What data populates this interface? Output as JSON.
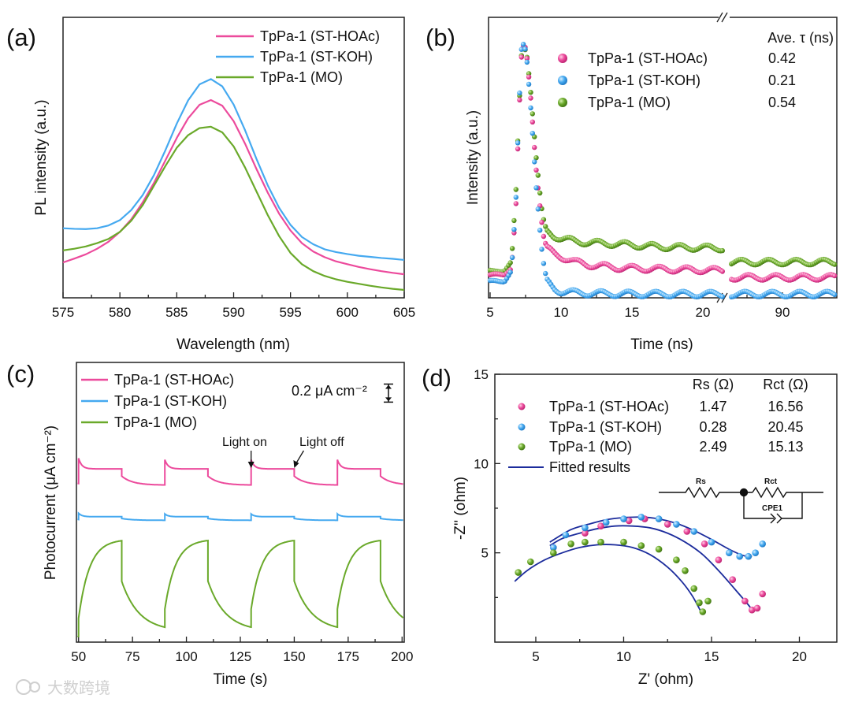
{
  "figure_labels": [
    "(a)",
    "(b)",
    "(c)",
    "(d)"
  ],
  "watermark": "大数跨境",
  "colors": {
    "hoac": "#ec4a9c",
    "koh": "#45a9f0",
    "mo": "#6aa92a",
    "fit": "#1c2c9c"
  },
  "chart_data": [
    {
      "panel": "a",
      "type": "line",
      "xlabel": "Wavelength (nm)",
      "ylabel": "PL intensity (a.u.)",
      "xlim": [
        575,
        605
      ],
      "ylim": [
        0,
        100
      ],
      "x_ticks": [
        575,
        580,
        585,
        590,
        595,
        600,
        605
      ],
      "legend": "top-right",
      "x": [
        575,
        576,
        577,
        578,
        579,
        580,
        581,
        582,
        583,
        584,
        585,
        586,
        587,
        588,
        589,
        590,
        591,
        592,
        593,
        594,
        595,
        596,
        597,
        598,
        599,
        600,
        601,
        602,
        603,
        604,
        605
      ],
      "series": [
        {
          "key": "hoac",
          "name": "TpPa-1 (ST-HOAc)",
          "values": [
            12.6,
            14,
            15.5,
            17.5,
            20,
            23.5,
            28,
            34,
            41,
            49,
            57,
            64,
            68.8,
            70.5,
            68.5,
            63,
            55,
            46,
            37.5,
            30,
            24,
            19.5,
            16.5,
            14.5,
            13,
            12,
            11,
            10.2,
            9.5,
            8.9,
            8.4
          ]
        },
        {
          "key": "koh",
          "name": "TpPa-1 (ST-KOH)",
          "values": [
            24.8,
            24.6,
            24.5,
            24.8,
            25.8,
            27.7,
            31.3,
            36.6,
            43.8,
            52.6,
            62.1,
            70.4,
            76.1,
            78,
            75.4,
            68.9,
            59.8,
            49.6,
            40.1,
            32.1,
            26,
            21.7,
            19.1,
            17.3,
            16.3,
            15.6,
            15,
            14.6,
            14.2,
            13.9,
            13.5
          ]
        },
        {
          "key": "mo",
          "name": "TpPa-1 (MO)",
          "values": [
            16.9,
            17.5,
            18.3,
            19.5,
            21,
            23.5,
            27.5,
            33,
            40,
            47,
            53.5,
            58,
            60.5,
            61,
            59,
            54,
            46.5,
            38,
            29.5,
            22,
            16,
            12,
            9.5,
            7.8,
            6.6,
            5.7,
            5,
            4.3,
            3.7,
            3.2,
            2.8
          ]
        }
      ]
    },
    {
      "panel": "b",
      "type": "scatter",
      "xlabel": "Time (ns)",
      "ylabel": "Intensity (a.u.)",
      "x_ticks": [
        5,
        10,
        15,
        20,
        90
      ],
      "axis_break": "between 21.5 and 86.4 ns",
      "ylim": [
        0,
        100
      ],
      "legend_header": "Ave. τ (ns)",
      "legend": "top-right",
      "t_left": [
        5,
        6,
        6.5,
        6.8,
        7.0,
        7.2,
        7.4,
        7.6,
        7.8,
        8.0,
        8.2,
        8.4,
        8.6,
        8.8,
        9,
        9.5,
        10,
        11,
        12,
        14,
        17,
        21.5
      ],
      "t_right": [
        86.4,
        93.8
      ],
      "series": [
        {
          "key": "hoac",
          "name": "TpPa-1 (ST-HOAc)",
          "tau": "0.42",
          "left": [
            7.3,
            7.5,
            10,
            30,
            60,
            85,
            91,
            85,
            75,
            62,
            48,
            38,
            28,
            20,
            17,
            15,
            14,
            12,
            11,
            10,
            9.5,
            9
          ],
          "right": [
            6.5,
            6.5
          ]
        },
        {
          "key": "koh",
          "name": "TpPa-1 (ST-KOH)",
          "tau": "0.21",
          "left": [
            5,
            5.2,
            9,
            32,
            62,
            88,
            91,
            84,
            72,
            58,
            42,
            30,
            18,
            10,
            5,
            2.5,
            1.5,
            1,
            0.8,
            0.6,
            0.5,
            0.5
          ],
          "right": [
            0.5,
            0.5
          ]
        },
        {
          "key": "mo",
          "name": "TpPa-1 (MO)",
          "tau": "0.54",
          "left": [
            8.7,
            9,
            12,
            35,
            62,
            86,
            90,
            86,
            77,
            65,
            52,
            42,
            32,
            26,
            23,
            21.5,
            20.5,
            19.5,
            19,
            18.5,
            17.5,
            17
          ],
          "right": [
            12,
            12
          ]
        }
      ]
    },
    {
      "panel": "c",
      "type": "line",
      "xlabel": "Time (s)",
      "ylabel": "Photocurrent (μA cm⁻²)",
      "xlim": [
        49,
        201
      ],
      "ylim": [
        0,
        3.1
      ],
      "x_ticks": [
        50,
        75,
        100,
        125,
        150,
        175,
        200
      ],
      "light_on": [
        50,
        90,
        130,
        170
      ],
      "light_off": [
        70,
        110,
        150,
        190
      ],
      "annotations": {
        "light_on": "Light on",
        "light_off": "Light off",
        "scale_bar": "0.2 μA cm⁻²",
        "scale_bar_value": 0.2
      },
      "legend": "top-left",
      "series": [
        {
          "key": "hoac",
          "name": "TpPa-1 (ST-HOAc)",
          "start": 1.76,
          "dark": 1.74,
          "light": 1.92,
          "jump_on": 0.28,
          "tau_on": 1.5,
          "jump_off": 0.08,
          "tau_off": 5
        },
        {
          "key": "koh",
          "name": "TpPa-1 (ST-KOH)",
          "start": 1.36,
          "dark": 1.35,
          "light": 1.39,
          "jump_on": 0.07,
          "tau_on": 1.5,
          "jump_off": 0.02,
          "tau_off": 5
        },
        {
          "key": "mo",
          "name": "TpPa-1 (MO)",
          "start": 0.06,
          "dark": 0.12,
          "light": 1.14,
          "jump_on": 0.2,
          "tau_on": 5,
          "jump_off": 0.45,
          "tau_off": 8
        }
      ]
    },
    {
      "panel": "d",
      "type": "scatter",
      "xlabel": "Z' (ohm)",
      "ylabel": "-Z'' (ohm)",
      "xlim": [
        2.67,
        22.13
      ],
      "ylim": [
        0,
        15
      ],
      "x_ticks": [
        5,
        10,
        15,
        20
      ],
      "y_ticks": [
        5,
        10,
        15
      ],
      "legend": "top-right",
      "legend_headers": {
        "rs": "Rs (Ω)",
        "rct": "Rct (Ω)"
      },
      "fit_label": "Fitted results",
      "circuit": {
        "rs": "Rs",
        "rct": "Rct",
        "cpe": "CPE1"
      },
      "series": [
        {
          "key": "hoac",
          "name": "TpPa-1 (ST-HOAc)",
          "rs": "1.47",
          "rct": "16.56",
          "x": [
            6,
            7.8,
            8.7,
            10.3,
            11.2,
            12.5,
            13.6,
            14.6,
            15.4,
            16.2,
            16.9,
            17.3,
            17.6,
            17.9
          ],
          "y": [
            5.3,
            6.1,
            6.5,
            6.8,
            6.9,
            6.6,
            6.2,
            5.5,
            4.6,
            3.5,
            2.3,
            1.8,
            1.9,
            2.7
          ],
          "fit_x": [
            5.8,
            6.5,
            7.5,
            8.5,
            9.5,
            10.5,
            11.5,
            12.5,
            13.5,
            14.5,
            15.5,
            16.3,
            17,
            17.4
          ],
          "fit_y": [
            5.4,
            5.8,
            6.1,
            6.35,
            6.5,
            6.5,
            6.4,
            6.1,
            5.6,
            4.9,
            3.9,
            3.0,
            2.2,
            1.7
          ]
        },
        {
          "key": "koh",
          "name": "TpPa-1 (ST-KOH)",
          "rs": "0.28",
          "rct": "20.45",
          "x": [
            6,
            6.7,
            7.8,
            9,
            10,
            11,
            12,
            13,
            14,
            15,
            16,
            16.6,
            17.1,
            17.5,
            17.9
          ],
          "y": [
            5.3,
            6.0,
            6.4,
            6.7,
            6.9,
            7.0,
            6.9,
            6.6,
            6.2,
            5.6,
            5.0,
            4.8,
            4.8,
            5.0,
            5.5
          ],
          "fit_x": [
            5.8,
            7,
            8,
            9,
            10,
            11,
            12,
            13,
            14,
            15,
            16,
            16.8,
            17.3
          ],
          "fit_y": [
            5.6,
            6.3,
            6.6,
            6.85,
            6.97,
            7.0,
            6.9,
            6.65,
            6.25,
            5.75,
            5.2,
            4.85,
            4.8
          ]
        },
        {
          "key": "mo",
          "name": "TpPa-1 (MO)",
          "rs": "2.49",
          "rct": "15.13",
          "x": [
            4,
            4.7,
            6,
            7,
            7.8,
            8.7,
            10,
            11,
            12,
            13,
            13.5,
            14,
            14.3,
            14.5,
            14.8
          ],
          "y": [
            3.9,
            4.5,
            5.0,
            5.5,
            5.6,
            5.6,
            5.6,
            5.4,
            5.2,
            4.6,
            4.0,
            3.0,
            2.2,
            1.7,
            2.3
          ],
          "fit_x": [
            3.8,
            4.5,
            5.5,
            6.5,
            7.5,
            8.5,
            9.5,
            10.5,
            11.5,
            12.5,
            13.3,
            13.9,
            14.4
          ],
          "fit_y": [
            3.4,
            4.0,
            4.6,
            5.0,
            5.3,
            5.45,
            5.45,
            5.3,
            4.9,
            4.2,
            3.4,
            2.6,
            1.7
          ]
        }
      ]
    }
  ]
}
